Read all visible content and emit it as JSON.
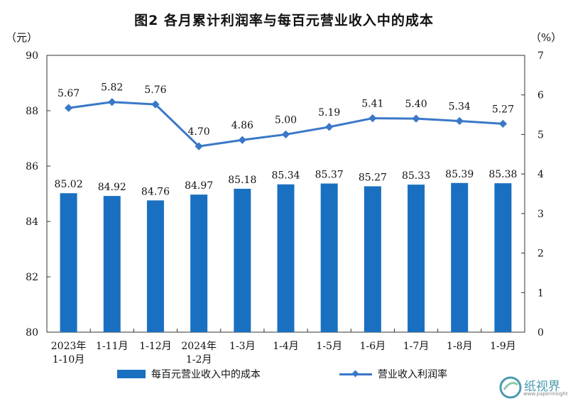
{
  "title": "图2  各月累计利润率与每百元营业收入中的成本",
  "y_left_unit": "（元）",
  "y_right_unit": "（%）",
  "legend": {
    "bar": "每百元营业收入中的成本",
    "line": "营业收入利润率"
  },
  "watermark": {
    "name": "纸视界",
    "url": "www.paperinsight.net"
  },
  "colors": {
    "bar": "#1a70c0",
    "line": "#3a78c8"
  },
  "chart_data": {
    "type": "bar",
    "categories": [
      [
        "2023年",
        "1-10月"
      ],
      [
        "1-11月"
      ],
      [
        "1-12月"
      ],
      [
        "2024年",
        "1-2月"
      ],
      [
        "1-3月"
      ],
      [
        "1-4月"
      ],
      [
        "1-5月"
      ],
      [
        "1-6月"
      ],
      [
        "1-7月"
      ],
      [
        "1-8月"
      ],
      [
        "1-9月"
      ]
    ],
    "series": [
      {
        "name": "每百元营业收入中的成本",
        "type": "bar",
        "axis": "left",
        "values": [
          85.02,
          84.92,
          84.76,
          84.97,
          85.18,
          85.34,
          85.37,
          85.27,
          85.33,
          85.39,
          85.38
        ],
        "labels": [
          "85.02",
          "84.92",
          "84.76",
          "84.97",
          "85.18",
          "85.34",
          "85.37",
          "85.27",
          "85.33",
          "85.39",
          "85.38"
        ]
      },
      {
        "name": "营业收入利润率",
        "type": "line",
        "axis": "right",
        "values": [
          5.67,
          5.82,
          5.76,
          4.7,
          4.86,
          5.0,
          5.19,
          5.41,
          5.4,
          5.34,
          5.27
        ],
        "labels": [
          "5.67",
          "5.82",
          "5.76",
          "4.70",
          "4.86",
          "5.00",
          "5.19",
          "5.41",
          "5.40",
          "5.34",
          "5.27"
        ]
      }
    ],
    "y_left": {
      "min": 80,
      "max": 90,
      "ticks": [
        80,
        82,
        84,
        86,
        88,
        90
      ]
    },
    "y_right": {
      "min": 0,
      "max": 7,
      "ticks": [
        0,
        1,
        2,
        3,
        4,
        5,
        6,
        7
      ]
    },
    "grid": false,
    "legend_position": "bottom"
  }
}
